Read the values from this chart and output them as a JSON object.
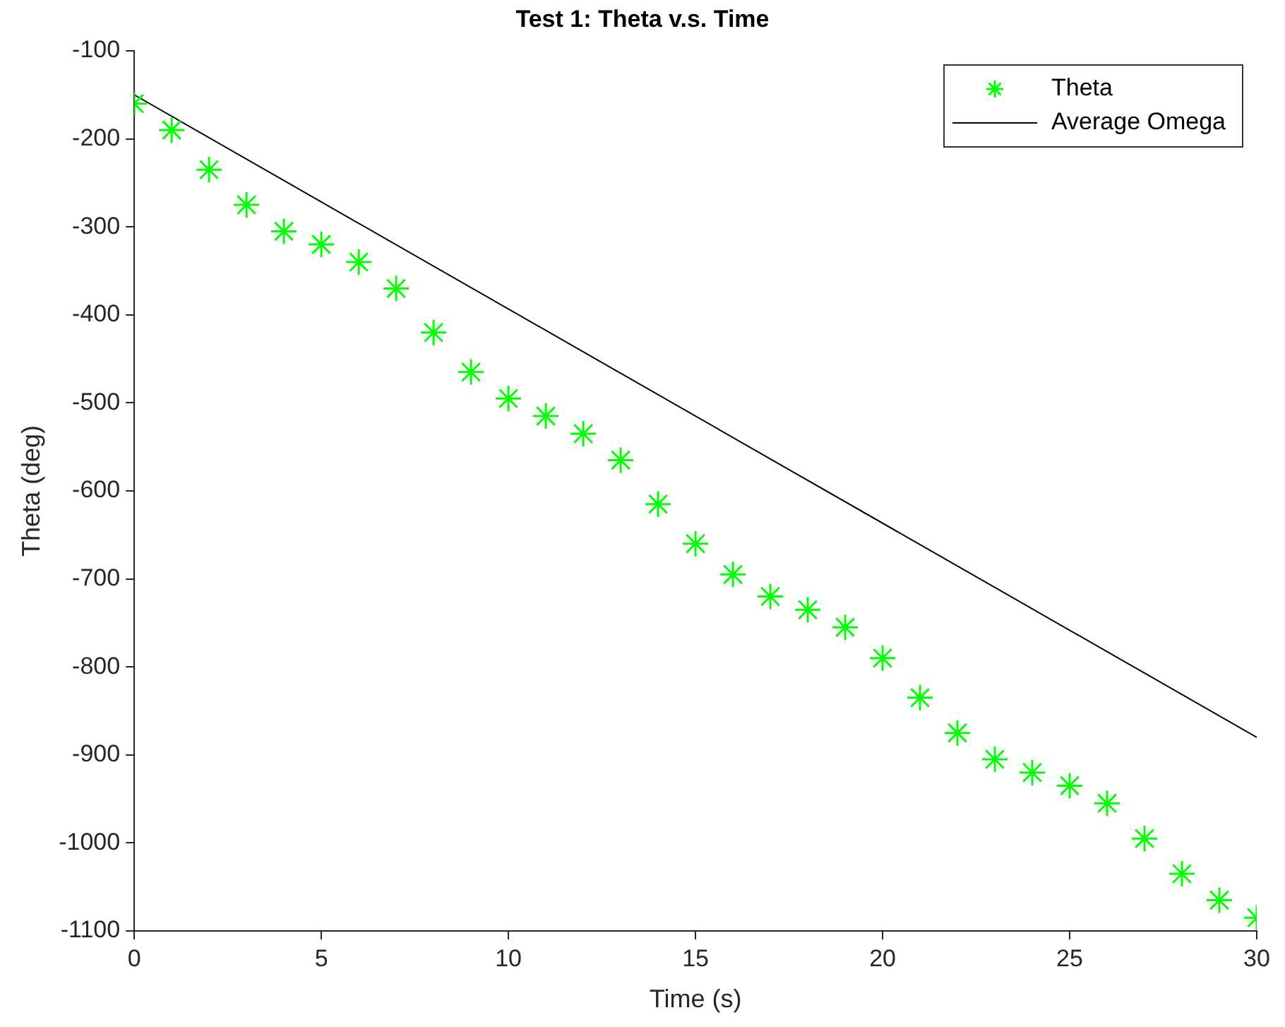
{
  "chart_data": {
    "type": "scatter",
    "title": "Test 1: Theta v.s. Time",
    "xlabel": "Time (s)",
    "ylabel": "Theta (deg)",
    "xlim": [
      0,
      30
    ],
    "xticks": [
      0,
      5,
      10,
      15,
      20,
      25,
      30
    ],
    "ylim": [
      -1100,
      -100
    ],
    "yticks": [
      -1100,
      -1000,
      -900,
      -800,
      -700,
      -600,
      -500,
      -400,
      -300,
      -200,
      -100
    ],
    "grid": false,
    "legend": "top right",
    "marker": "cross",
    "series": [
      {
        "name": "Theta",
        "color": "#00ff00",
        "x": [
          0,
          1,
          2,
          3,
          4,
          5,
          6,
          7,
          8,
          9,
          10,
          11,
          12,
          13,
          14,
          15,
          16,
          17,
          18,
          19,
          20,
          21,
          22,
          23,
          24,
          25,
          26,
          27,
          28,
          29,
          30
        ],
        "values": [
          -160,
          -190,
          -235,
          -275,
          -305,
          -320,
          -340,
          -370,
          -420,
          -465,
          -495,
          -515,
          -535,
          -565,
          -615,
          -660,
          -695,
          -720,
          -735,
          -755,
          -790,
          -835,
          -875,
          -905,
          -920,
          -935,
          -955,
          -995,
          -1035,
          -1065,
          -1085
        ]
      },
      {
        "name": "Average Omega",
        "color": "#000000",
        "type": "line",
        "marker": "none",
        "line_style": "solid",
        "x": [
          0,
          30
        ],
        "values": [
          -150,
          -880
        ]
      }
    ]
  }
}
